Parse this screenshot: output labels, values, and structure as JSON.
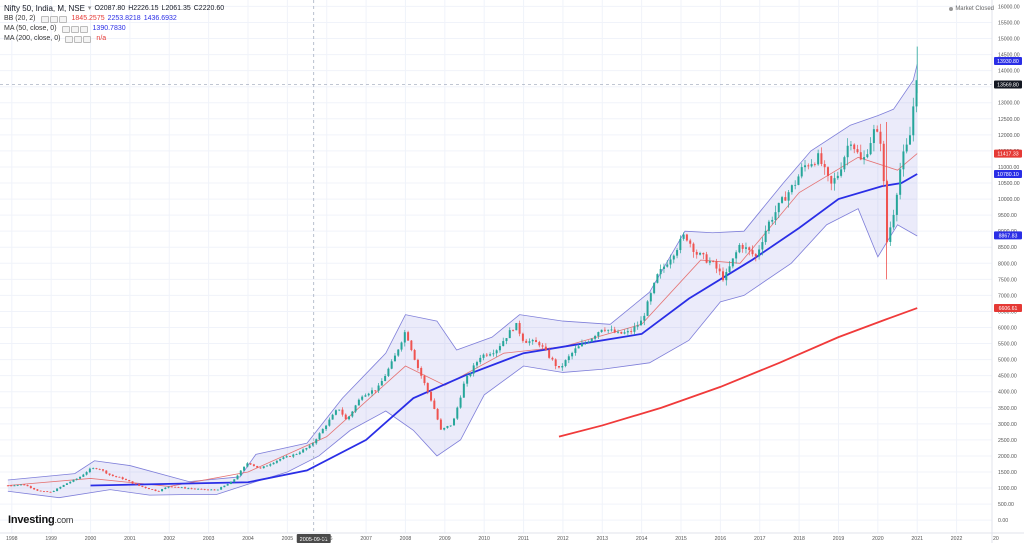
{
  "legend": {
    "title": "Nifty 50, India, M, NSE",
    "ohlc": {
      "open": "O2087.80",
      "high": "H2226.15",
      "low": "L2061.35",
      "close": "C2220.60"
    },
    "bb": {
      "label": "BB (20, 2)",
      "v1": "1845.2575",
      "v2": "2253.8218",
      "v3": "1436.6932"
    },
    "ma50": {
      "label": "MA (50, close, 0)",
      "value": "1390.7830"
    },
    "ma200": {
      "label": "MA (200, close, 0)",
      "value": "n/a"
    }
  },
  "market_status": "Market Closed",
  "logo": {
    "name": "Investing",
    "suffix": ".com"
  },
  "crosshair_date": "2005-09-01",
  "price_tags": [
    {
      "text": "13930.80",
      "price": 14300,
      "bg": "#2a2ee6"
    },
    {
      "text": "13569.80",
      "price": 13569.8,
      "bg": "#131722"
    },
    {
      "text": "11417.33",
      "price": 11417.33,
      "bg": "#e53935"
    },
    {
      "text": "10780.10",
      "price": 10780.1,
      "bg": "#2a2ee6"
    },
    {
      "text": "8867.83",
      "price": 8867.83,
      "bg": "#2a2ee6"
    },
    {
      "text": "6606.61",
      "price": 6606.61,
      "bg": "#e53935"
    }
  ],
  "colors": {
    "up": "#26a69a",
    "down": "#ef5350",
    "bb_basis": "#e57373",
    "bb_band": "#7e7ed9",
    "bb_fill": "rgba(120,120,220,0.15)",
    "ma50": "#2a2ee6",
    "ma200": "#f03a3a",
    "grid": "#f0f3fa",
    "axis_text": "#555555",
    "crosshair": "#9aa4b8"
  },
  "chart_data": {
    "type": "candlestick",
    "title": "Nifty 50, India, M, NSE",
    "xlabel": "",
    "ylabel": "",
    "x_ticks": [
      "1998",
      "1999",
      "2000",
      "2001",
      "2002",
      "2003",
      "2004",
      "2005",
      "2006",
      "2007",
      "2008",
      "2009",
      "2010",
      "2011",
      "2012",
      "2013",
      "2014",
      "2015",
      "2016",
      "2017",
      "2018",
      "2019",
      "2020",
      "2021",
      "2022",
      "20"
    ],
    "y_ticks": [
      "0.00",
      "500.00",
      "1000.00",
      "1500.00",
      "2000.00",
      "2500.00",
      "3000.00",
      "3500.00",
      "4000.00",
      "4500.00",
      "5000.00",
      "5500.00",
      "6000.00",
      "6500.00",
      "7000.00",
      "7500.00",
      "8000.00",
      "8500.00",
      "9000.00",
      "9500.00",
      "10000.00",
      "10500.00",
      "11000.00",
      "11500.00",
      "12000.00",
      "12500.00",
      "13000.00",
      "13500.00",
      "14000.00",
      "14500.00",
      "15000.00",
      "15500.00",
      "16000.00"
    ],
    "ylim": [
      -400,
      16200
    ],
    "xlim": [
      1997.7,
      2022.9
    ],
    "grid": true,
    "price_points": [
      [
        1997.9,
        1080
      ],
      [
        1998.3,
        1110
      ],
      [
        1998.7,
        900
      ],
      [
        1999.0,
        870
      ],
      [
        1999.4,
        1150
      ],
      [
        1999.7,
        1320
      ],
      [
        2000.0,
        1600
      ],
      [
        2000.2,
        1620
      ],
      [
        2000.5,
        1400
      ],
      [
        2000.8,
        1300
      ],
      [
        2001.2,
        1080
      ],
      [
        2001.7,
        900
      ],
      [
        2002.0,
        1060
      ],
      [
        2002.4,
        1000
      ],
      [
        2002.8,
        960
      ],
      [
        2003.2,
        940
      ],
      [
        2003.6,
        1200
      ],
      [
        2004.0,
        1800
      ],
      [
        2004.3,
        1600
      ],
      [
        2004.8,
        1900
      ],
      [
        2005.2,
        2050
      ],
      [
        2005.6,
        2320
      ],
      [
        2006.0,
        3000
      ],
      [
        2006.3,
        3500
      ],
      [
        2006.5,
        3100
      ],
      [
        2006.9,
        3900
      ],
      [
        2007.3,
        4100
      ],
      [
        2007.7,
        5000
      ],
      [
        2008.0,
        5900
      ],
      [
        2008.3,
        4800
      ],
      [
        2008.7,
        3600
      ],
      [
        2008.9,
        2800
      ],
      [
        2009.2,
        3000
      ],
      [
        2009.5,
        4300
      ],
      [
        2009.9,
        5100
      ],
      [
        2010.3,
        5300
      ],
      [
        2010.8,
        6100
      ],
      [
        2011.0,
        5600
      ],
      [
        2011.4,
        5500
      ],
      [
        2011.9,
        4700
      ],
      [
        2012.3,
        5300
      ],
      [
        2012.7,
        5650
      ],
      [
        2013.0,
        6000
      ],
      [
        2013.4,
        5800
      ],
      [
        2013.7,
        5850
      ],
      [
        2014.0,
        6200
      ],
      [
        2014.4,
        7600
      ],
      [
        2014.9,
        8500
      ],
      [
        2015.1,
        8900
      ],
      [
        2015.4,
        8300
      ],
      [
        2015.8,
        8000
      ],
      [
        2016.1,
        7500
      ],
      [
        2016.5,
        8600
      ],
      [
        2016.9,
        8200
      ],
      [
        2017.2,
        9200
      ],
      [
        2017.6,
        10000
      ],
      [
        2017.9,
        10500
      ],
      [
        2018.1,
        11000
      ],
      [
        2018.5,
        11300
      ],
      [
        2018.8,
        10400
      ],
      [
        2019.0,
        10800
      ],
      [
        2019.3,
        11900
      ],
      [
        2019.6,
        11100
      ],
      [
        2019.9,
        12100
      ],
      [
        2020.1,
        11800
      ],
      [
        2020.22,
        8600
      ],
      [
        2020.4,
        9600
      ],
      [
        2020.6,
        11200
      ],
      [
        2020.8,
        11800
      ],
      [
        2020.9,
        12900
      ],
      [
        2020.95,
        13600
      ],
      [
        2021.0,
        13990
      ]
    ],
    "ma50_points": [
      [
        2000.0,
        1080
      ],
      [
        2002.0,
        1130
      ],
      [
        2004.0,
        1180
      ],
      [
        2005.5,
        1550
      ],
      [
        2007.0,
        2500
      ],
      [
        2008.2,
        3800
      ],
      [
        2009.5,
        4500
      ],
      [
        2011.0,
        5200
      ],
      [
        2012.5,
        5500
      ],
      [
        2014.0,
        5800
      ],
      [
        2015.2,
        6900
      ],
      [
        2016.8,
        8100
      ],
      [
        2018.0,
        9100
      ],
      [
        2019.0,
        10000
      ],
      [
        2020.1,
        10400
      ],
      [
        2020.6,
        10500
      ],
      [
        2021.0,
        10780
      ]
    ],
    "ma200_points": [
      [
        2011.9,
        2600
      ],
      [
        2013.0,
        2950
      ],
      [
        2014.5,
        3500
      ],
      [
        2016.0,
        4150
      ],
      [
        2017.5,
        4900
      ],
      [
        2019.0,
        5700
      ],
      [
        2020.2,
        6250
      ],
      [
        2021.0,
        6606
      ]
    ],
    "bb_upper": [
      [
        1997.9,
        1250
      ],
      [
        1999.6,
        1450
      ],
      [
        2000.1,
        1850
      ],
      [
        2001.0,
        1700
      ],
      [
        2002.5,
        1200
      ],
      [
        2003.8,
        1350
      ],
      [
        2004.2,
        2050
      ],
      [
        2005.5,
        2400
      ],
      [
        2006.4,
        3800
      ],
      [
        2007.5,
        5200
      ],
      [
        2008.0,
        6400
      ],
      [
        2008.8,
        6200
      ],
      [
        2009.3,
        5300
      ],
      [
        2010.2,
        5700
      ],
      [
        2010.9,
        6400
      ],
      [
        2012.0,
        6200
      ],
      [
        2013.2,
        6100
      ],
      [
        2014.2,
        7100
      ],
      [
        2015.1,
        9000
      ],
      [
        2015.8,
        8950
      ],
      [
        2016.6,
        9000
      ],
      [
        2017.6,
        10500
      ],
      [
        2018.3,
        11500
      ],
      [
        2019.3,
        12300
      ],
      [
        2020.0,
        12600
      ],
      [
        2020.4,
        12800
      ],
      [
        2020.9,
        13700
      ],
      [
        2021.0,
        14200
      ]
    ],
    "bb_lower": [
      [
        2021.0,
        8850
      ],
      [
        2020.5,
        9200
      ],
      [
        2020.0,
        8200
      ],
      [
        2019.5,
        9700
      ],
      [
        2018.7,
        9200
      ],
      [
        2017.8,
        8000
      ],
      [
        2016.6,
        7000
      ],
      [
        2016.0,
        6800
      ],
      [
        2015.2,
        5600
      ],
      [
        2014.2,
        4900
      ],
      [
        2013.0,
        4700
      ],
      [
        2012.0,
        4600
      ],
      [
        2011.0,
        4800
      ],
      [
        2010.0,
        3900
      ],
      [
        2009.4,
        2500
      ],
      [
        2008.8,
        2000
      ],
      [
        2008.2,
        2800
      ],
      [
        2007.5,
        3400
      ],
      [
        2006.6,
        2800
      ],
      [
        2005.8,
        2000
      ],
      [
        2005.0,
        1500
      ],
      [
        2004.2,
        1200
      ],
      [
        2003.2,
        800
      ],
      [
        2002.5,
        800
      ],
      [
        2001.5,
        780
      ],
      [
        2000.5,
        950
      ],
      [
        1999.2,
        700
      ],
      [
        1997.9,
        900
      ]
    ],
    "bb_basis": [
      [
        1997.9,
        1080
      ],
      [
        2000.0,
        1300
      ],
      [
        2002.0,
        1050
      ],
      [
        2004.0,
        1500
      ],
      [
        2006.0,
        2600
      ],
      [
        2008.0,
        4800
      ],
      [
        2009.0,
        4200
      ],
      [
        2010.5,
        5200
      ],
      [
        2012.0,
        5400
      ],
      [
        2014.0,
        6100
      ],
      [
        2015.5,
        8100
      ],
      [
        2016.5,
        8000
      ],
      [
        2018.0,
        10200
      ],
      [
        2019.5,
        11300
      ],
      [
        2020.5,
        10900
      ],
      [
        2021.0,
        11417
      ]
    ]
  }
}
